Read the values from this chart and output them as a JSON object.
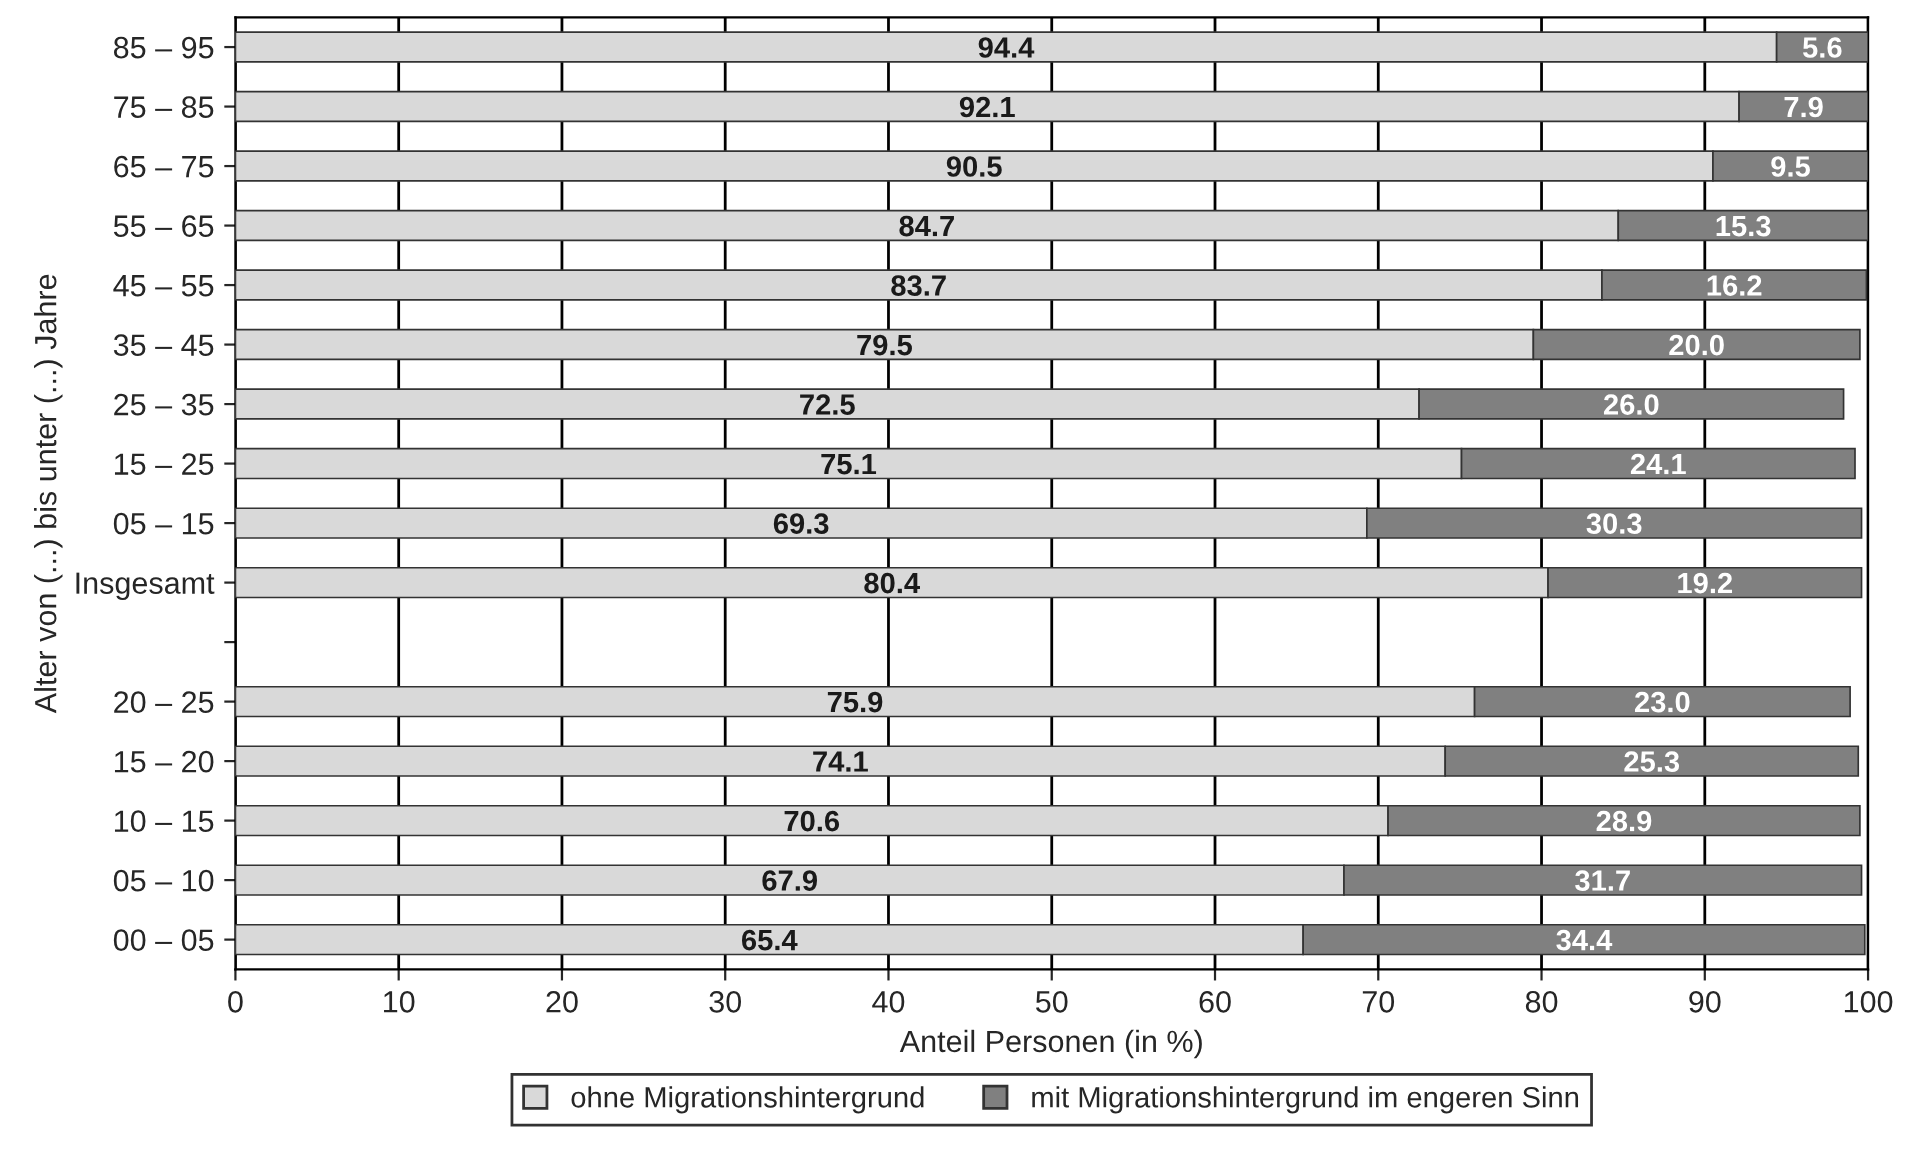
{
  "chart_data": {
    "type": "bar",
    "orientation": "horizontal",
    "stacked": true,
    "categories": [
      "85 – 95",
      "75 – 85",
      "65 – 75",
      "55 – 65",
      "45 – 55",
      "35 – 45",
      "25 – 35",
      "15 – 25",
      "05 – 15",
      "Insgesamt",
      null,
      "20 – 25",
      "15 – 20",
      "10 – 15",
      "05 – 10",
      "00 – 05"
    ],
    "series": [
      {
        "name": "ohne Migrationshintergrund",
        "color": "#d9d9d9",
        "values": [
          94.4,
          92.1,
          90.5,
          84.7,
          83.7,
          79.5,
          72.5,
          75.1,
          69.3,
          80.4,
          null,
          75.9,
          74.1,
          70.6,
          67.9,
          65.4
        ],
        "value_labels": [
          "94.4",
          "92.1",
          "90.5",
          "84.7",
          "83.7",
          "79.5",
          "72.5",
          "75.1",
          "69.3",
          "80.4",
          null,
          "75.9",
          "74.1",
          "70.6",
          "67.9",
          "65.4"
        ]
      },
      {
        "name": "mit Migrationshintergrund im engeren Sinn",
        "color": "#808080",
        "values": [
          5.6,
          7.9,
          9.5,
          15.3,
          16.2,
          20,
          26,
          24.1,
          30.3,
          19.2,
          null,
          23,
          25.3,
          28.9,
          31.7,
          34.4
        ],
        "value_labels": [
          "5.6",
          "7.9",
          "9.5",
          "15.3",
          "16.2",
          "20.0",
          "26.0",
          "24.1",
          "30.3",
          "19.2",
          null,
          "23.0",
          "25.3",
          "28.9",
          "31.7",
          "34.4"
        ]
      }
    ],
    "xlim": [
      0,
      100
    ],
    "xticks": [
      0,
      10,
      20,
      30,
      40,
      50,
      60,
      70,
      80,
      90,
      100
    ],
    "xlabel": "Anteil Personen (in %)",
    "ylabel": "Alter von (...) bis unter (...) Jahre",
    "grid": "x",
    "legend": "bottom"
  }
}
